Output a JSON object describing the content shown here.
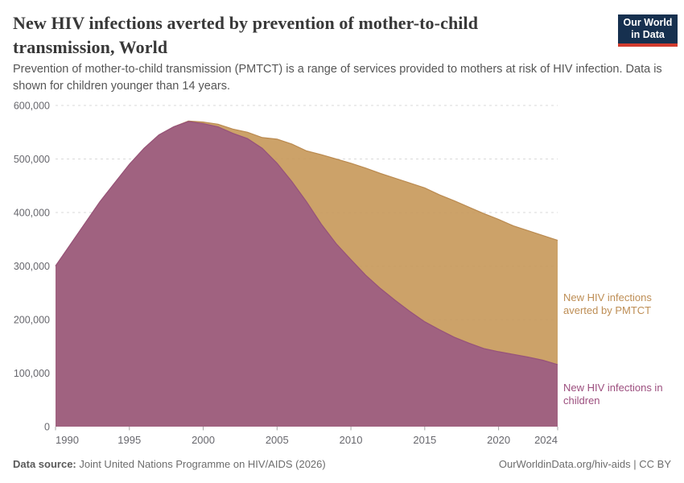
{
  "header": {
    "title": "New HIV infections averted by prevention of mother-to-child transmission, World",
    "subtitle": "Prevention of mother-to-child transmission (PMTCT) is a range of services provided to mothers at risk of HIV infection. Data is shown for children younger than 14 years.",
    "logo": {
      "line1": "Our World",
      "line2": "in Data"
    }
  },
  "footer": {
    "source_label": "Data source:",
    "source_text": " Joint United Nations Programme on HIV/AIDS (2026)",
    "attribution": "OurWorldinData.org/hiv-aids | CC BY"
  },
  "colors": {
    "background": "#ffffff",
    "title_text": "#383838",
    "subtitle_text": "#565656",
    "axis_text": "#67676d",
    "gridline": "#d9d9d9",
    "tick_mark": "#a5a5a5",
    "logo_navy": "#16304f",
    "logo_red": "#d13b2e"
  },
  "chart_data": {
    "type": "area",
    "stacked": true,
    "title": "New HIV infections averted by prevention of mother-to-child transmission, World",
    "xlabel": "",
    "ylabel": "",
    "xlim": [
      1990,
      2024
    ],
    "ylim": [
      0,
      600000
    ],
    "grid": "horizontal-dashed",
    "legend": "right-annotations",
    "x": [
      1990,
      1991,
      1992,
      1993,
      1994,
      1995,
      1996,
      1997,
      1998,
      1999,
      2000,
      2001,
      2002,
      2003,
      2004,
      2005,
      2006,
      2007,
      2008,
      2009,
      2010,
      2011,
      2012,
      2013,
      2014,
      2015,
      2016,
      2017,
      2018,
      2019,
      2020,
      2021,
      2022,
      2023,
      2024
    ],
    "xticks": [
      1990,
      1995,
      2000,
      2005,
      2010,
      2015,
      2020,
      2024
    ],
    "yticks": [
      0,
      100000,
      200000,
      300000,
      400000,
      500000,
      600000
    ],
    "series": [
      {
        "name": "New HIV infections in children",
        "fill_color": "#9B5B83",
        "line_color": "#96527B",
        "label_color": "#9C4E7E",
        "values": [
          300000,
          340000,
          380000,
          420000,
          455000,
          490000,
          520000,
          545000,
          560000,
          570000,
          566000,
          560000,
          548000,
          538000,
          520000,
          492000,
          458000,
          420000,
          378000,
          342000,
          312000,
          283000,
          258000,
          236000,
          215000,
          196000,
          181000,
          167000,
          156000,
          146000,
          140000,
          135000,
          130000,
          124000,
          116000
        ]
      },
      {
        "name": "New HIV infections averted by PMTCT",
        "fill_color": "#C69859",
        "line_color": "#BA8A50",
        "label_color": "#BE8E55",
        "values": [
          0,
          0,
          0,
          0,
          0,
          0,
          0,
          0,
          0,
          1000,
          3000,
          5000,
          8000,
          12000,
          20000,
          45000,
          70000,
          95000,
          130000,
          158000,
          180000,
          200000,
          215000,
          228000,
          240000,
          250000,
          252000,
          255000,
          254000,
          252000,
          247000,
          240000,
          236000,
          233000,
          232000
        ]
      }
    ]
  }
}
